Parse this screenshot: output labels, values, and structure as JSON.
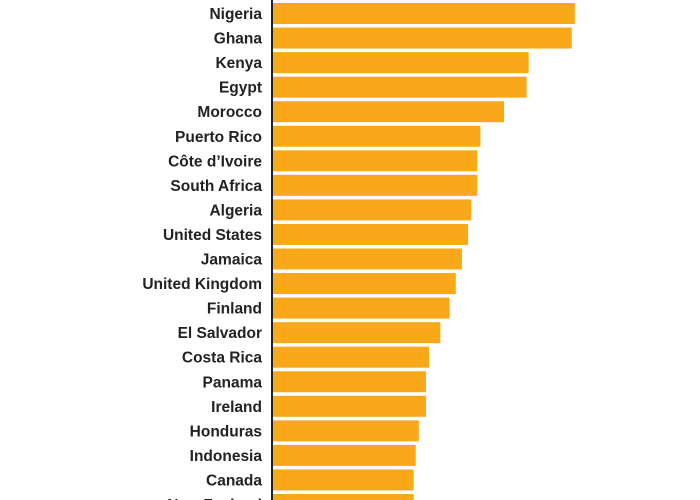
{
  "chart_data": {
    "type": "bar",
    "orientation": "horizontal",
    "categories": [
      "Nigeria",
      "Ghana",
      "Kenya",
      "Egypt",
      "Morocco",
      "Puerto Rico",
      "Côte d’Ivoire",
      "South Africa",
      "Algeria",
      "United States",
      "Jamaica",
      "United Kingdom",
      "Finland",
      "El Salvador",
      "Costa Rica",
      "Panama",
      "Ireland",
      "Honduras",
      "Indonesia",
      "Canada",
      "New Zealand"
    ],
    "values": [
      295,
      292,
      250,
      248,
      226,
      203,
      200,
      200,
      194,
      191,
      185,
      179,
      173,
      164,
      153,
      150,
      150,
      143,
      140,
      138,
      138
    ],
    "xlim": [
      0,
      300
    ],
    "title": "",
    "xlabel": "",
    "ylabel": "",
    "grid": false,
    "legend": "none",
    "colors": {
      "bar": "#F9A81A",
      "axis": "#222222",
      "label": "#222222",
      "background": "#FFFFFF"
    }
  }
}
